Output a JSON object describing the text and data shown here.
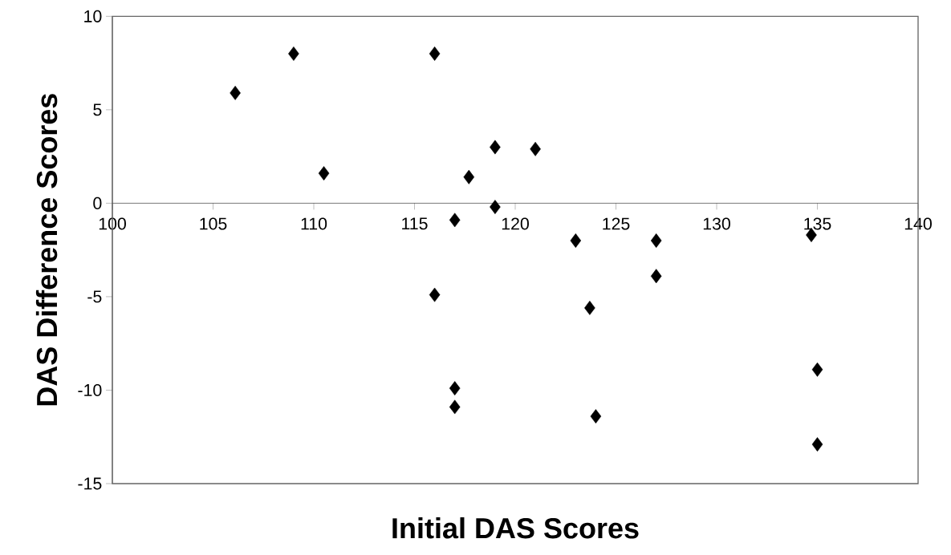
{
  "chart_data": {
    "type": "scatter",
    "xlabel": "Initial DAS Scores",
    "ylabel": "DAS Difference Scores",
    "x": [
      106.1,
      109,
      116,
      110.5,
      119,
      117.7,
      119,
      117,
      121,
      116,
      117,
      117,
      123,
      123.7,
      124,
      127,
      127,
      134.7,
      135,
      135
    ],
    "values": [
      5.9,
      8,
      8,
      1.6,
      3,
      1.4,
      -0.2,
      -0.9,
      2.9,
      -4.9,
      -9.9,
      -10.9,
      -2,
      -5.6,
      -11.4,
      -2,
      -3.9,
      -1.7,
      -8.9,
      -12.9
    ],
    "color": "#000000",
    "marker": "diamond",
    "xlim": [
      100,
      140
    ],
    "ylim": [
      -15,
      10
    ],
    "xticks": [
      100,
      105,
      110,
      115,
      120,
      125,
      130,
      135,
      140
    ],
    "yticks": [
      -15,
      -10,
      -5,
      0,
      5,
      10
    ]
  }
}
